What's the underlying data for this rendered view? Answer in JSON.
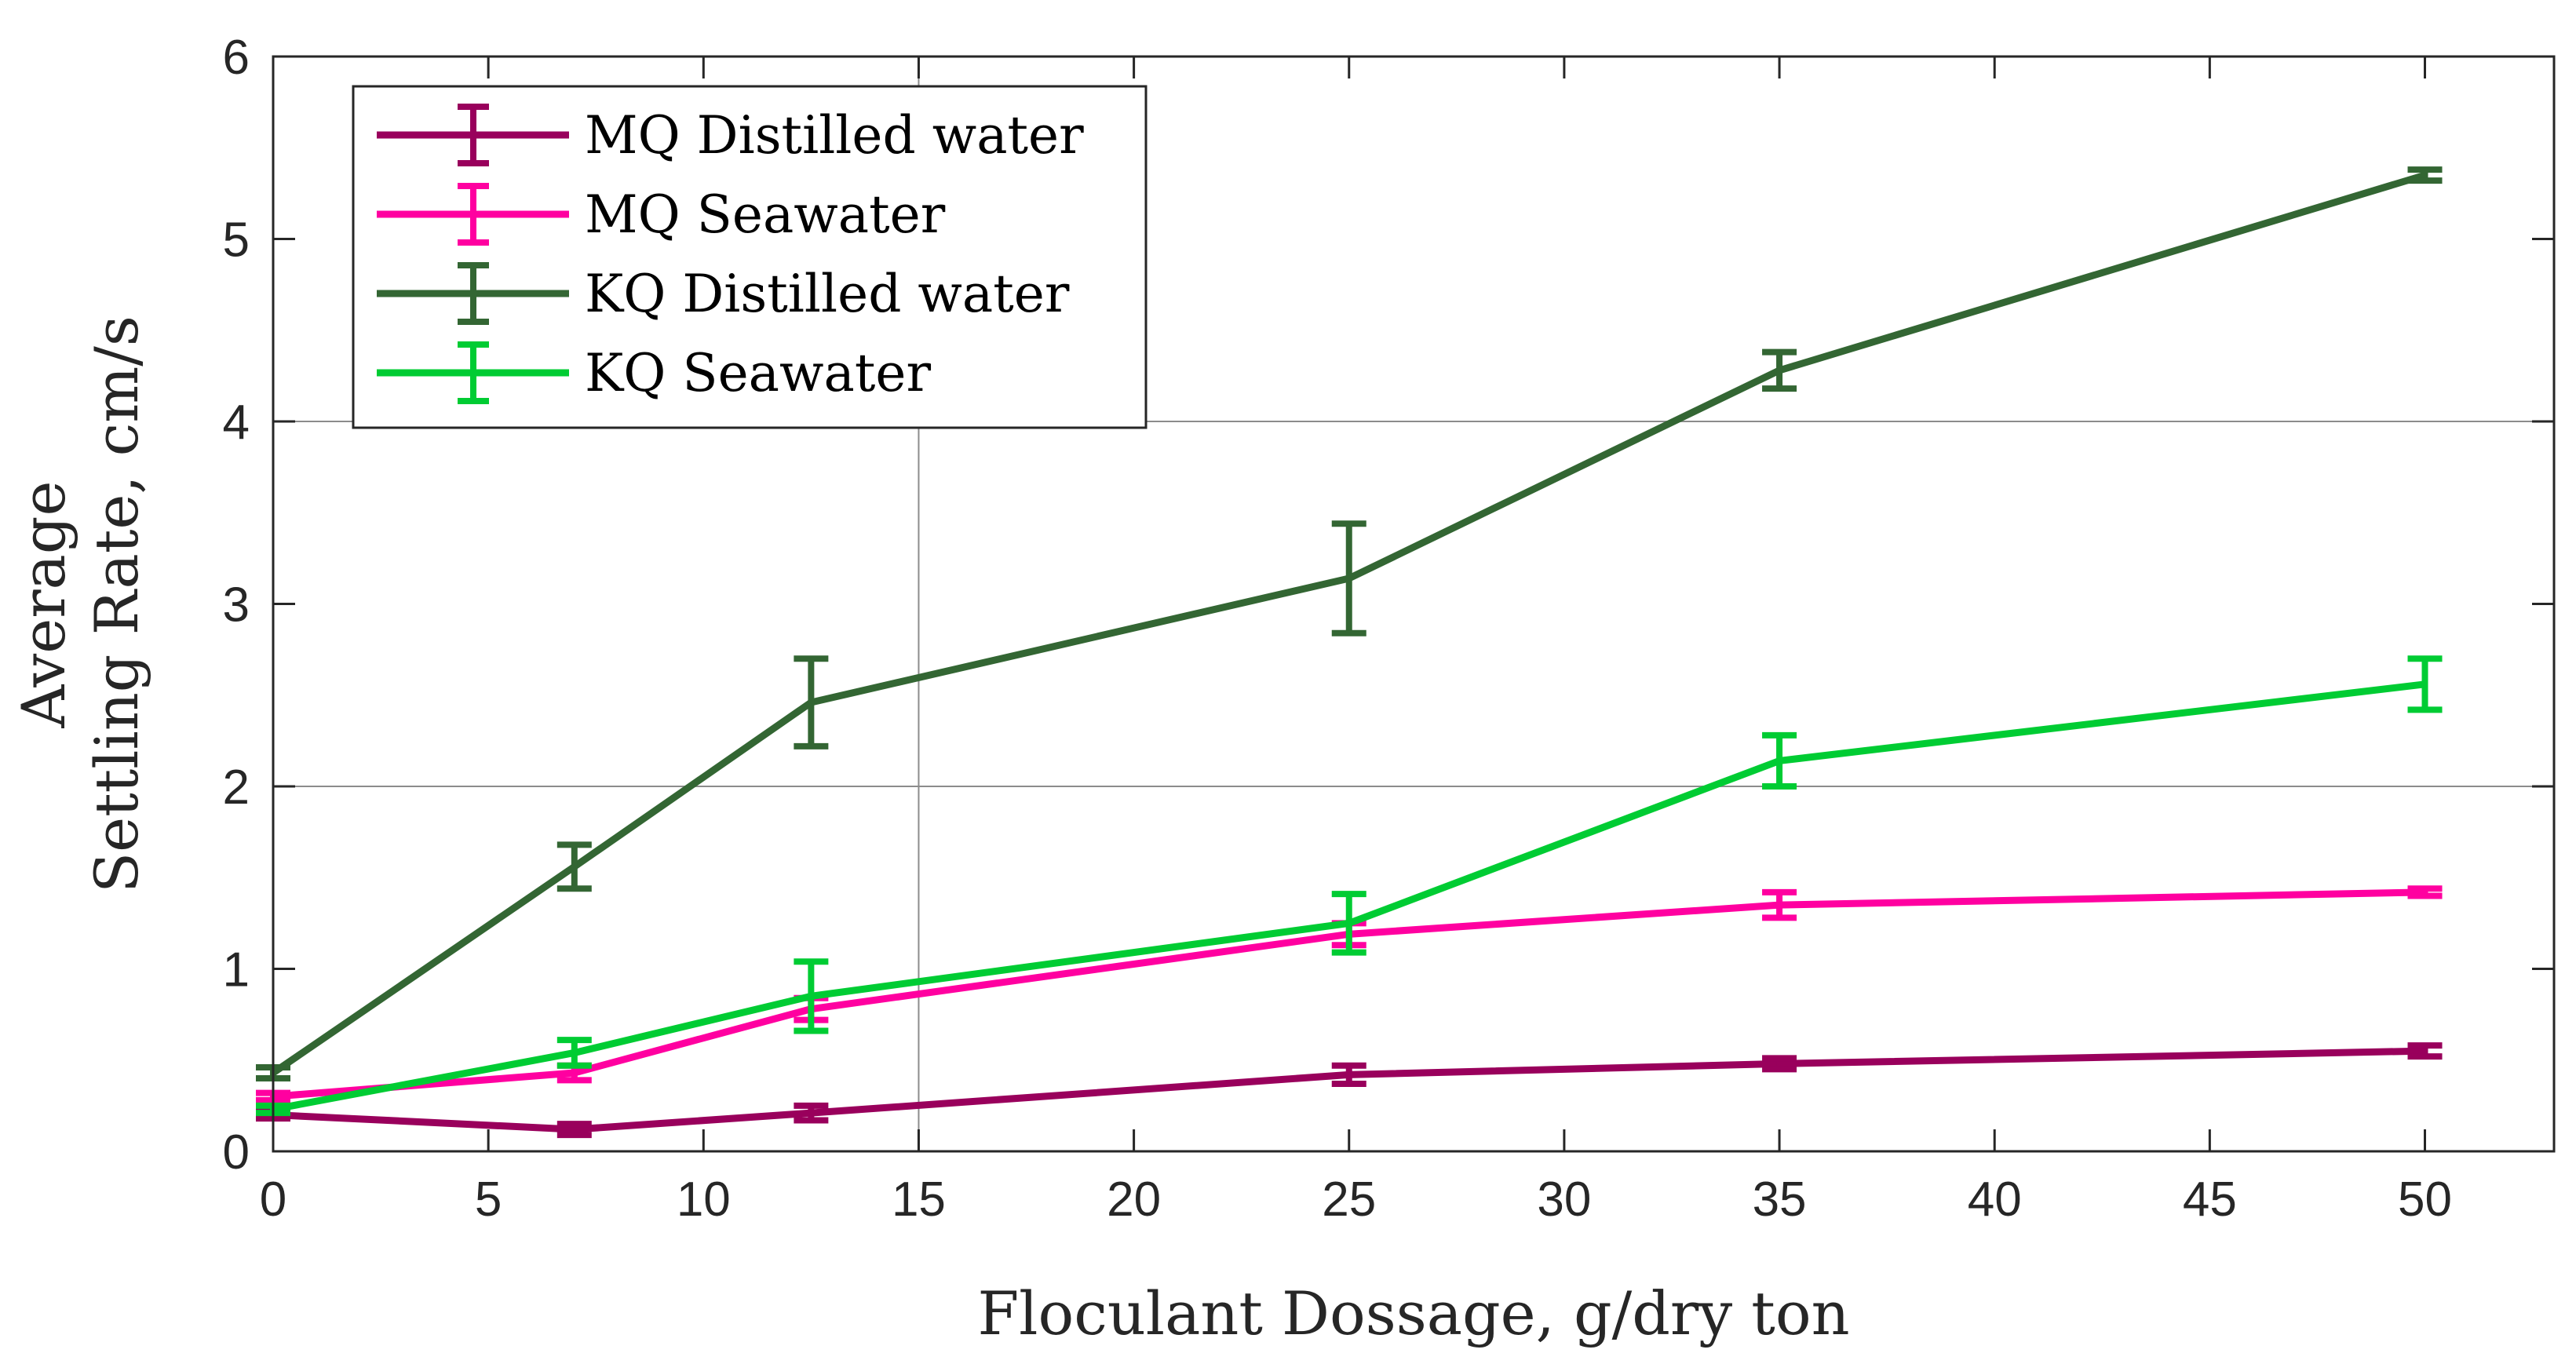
{
  "chart_data": {
    "type": "line",
    "title": "",
    "xlabel": "Floculant Dossage, g/dry ton",
    "ylabel": [
      "Average",
      "Settling Rate, cm/s"
    ],
    "xlim": [
      0,
      53
    ],
    "ylim": [
      0,
      6
    ],
    "xticks": [
      0,
      5,
      10,
      15,
      20,
      25,
      30,
      35,
      40,
      45,
      50
    ],
    "yticks": [
      0,
      1,
      2,
      3,
      4,
      5,
      6
    ],
    "grid": {
      "x": [
        15
      ],
      "y": [
        2,
        4
      ]
    },
    "legend_position": "top-left",
    "series": [
      {
        "name": "MQ Distilled water",
        "color": "#99005c",
        "x": [
          0,
          7,
          12.5,
          25,
          35,
          50
        ],
        "values": [
          0.2,
          0.12,
          0.21,
          0.42,
          0.48,
          0.55
        ],
        "errors": [
          0.02,
          0.03,
          0.04,
          0.05,
          0.03,
          0.03
        ]
      },
      {
        "name": "MQ Seawater",
        "color": "#ff00a0",
        "x": [
          0,
          7,
          12.5,
          25,
          35,
          50
        ],
        "values": [
          0.3,
          0.43,
          0.78,
          1.19,
          1.35,
          1.42
        ],
        "errors": [
          0.02,
          0.04,
          0.06,
          0.06,
          0.07,
          0.02
        ]
      },
      {
        "name": "KQ Distilled water",
        "color": "#336633",
        "x": [
          0,
          7,
          12.5,
          25,
          35,
          50
        ],
        "values": [
          0.43,
          1.56,
          2.46,
          3.14,
          4.28,
          5.35
        ],
        "errors": [
          0.03,
          0.12,
          0.24,
          0.3,
          0.1,
          0.03
        ]
      },
      {
        "name": "KQ Seawater",
        "color": "#00cc33",
        "x": [
          0,
          7,
          12.5,
          25,
          35,
          50
        ],
        "values": [
          0.23,
          0.54,
          0.85,
          1.25,
          2.14,
          2.56
        ],
        "errors": [
          0.02,
          0.07,
          0.19,
          0.16,
          0.14,
          0.14
        ]
      }
    ]
  }
}
